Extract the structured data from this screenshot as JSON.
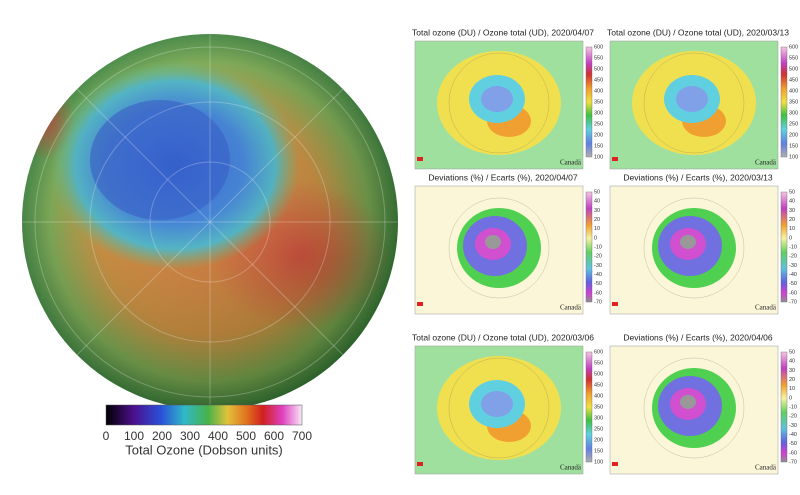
{
  "main_map": {
    "colorbar": {
      "ticks": [
        0,
        100,
        200,
        300,
        400,
        500,
        600,
        700
      ],
      "label": "Total Ozone (Dobson units)"
    }
  },
  "panels": [
    {
      "title": "Total ozone (DU) / Ozone total (UD), 2020/04/07",
      "colorbar_ticks": [
        600,
        550,
        500,
        450,
        400,
        350,
        300,
        250,
        200,
        150,
        100
      ],
      "logo": "Canadä"
    },
    {
      "title": "Total ozone (DU) / Ozone total (UD), 2020/03/13",
      "colorbar_ticks": [
        600,
        550,
        500,
        450,
        400,
        350,
        300,
        250,
        200,
        150,
        100
      ],
      "logo": "Canadä"
    },
    {
      "title": "Deviations (%) / Ecarts (%), 2020/04/07",
      "colorbar_ticks": [
        50,
        40,
        30,
        20,
        10,
        0,
        -10,
        -20,
        -30,
        -40,
        -50,
        -60,
        -70
      ],
      "logo": "Canadä"
    },
    {
      "title": "Deviations (%) / Ecarts (%), 2020/03/13",
      "colorbar_ticks": [
        50,
        40,
        30,
        20,
        10,
        0,
        -10,
        -20,
        -30,
        -40,
        -50,
        -60,
        -70
      ],
      "logo": "Canadä"
    },
    {
      "title": "Total ozone (DU) / Ozone total (UD), 2020/03/06",
      "colorbar_ticks": [
        600,
        550,
        500,
        450,
        400,
        350,
        300,
        250,
        200,
        150,
        100
      ],
      "logo": "Canadä"
    },
    {
      "title": "Deviations (%) / Ecarts (%), 2020/04/06",
      "colorbar_ticks": [
        50,
        40,
        30,
        20,
        10,
        0,
        -10,
        -20,
        -30,
        -40,
        -50,
        -60,
        -70
      ],
      "logo": "Canadä"
    }
  ]
}
